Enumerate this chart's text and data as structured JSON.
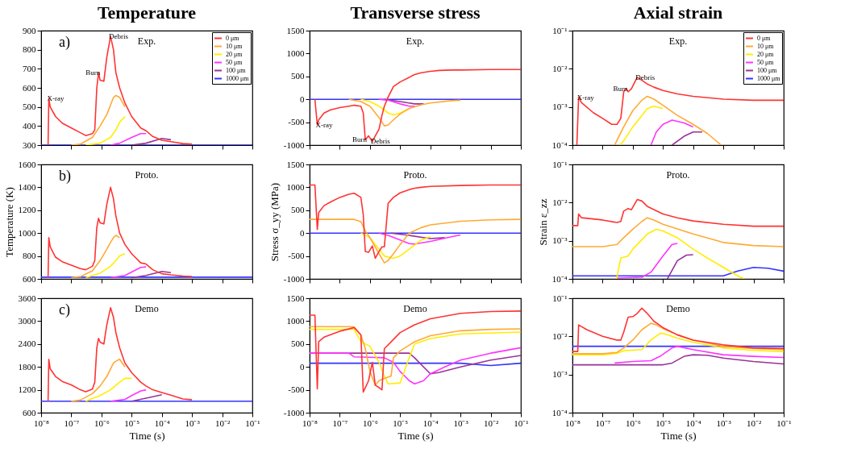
{
  "chart_data": [
    {
      "type": "line",
      "title": "Temperature",
      "log": "x",
      "tick_labels": "y",
      "legend": "top right",
      "xlim": [
        1e-08,
        0.1
      ],
      "xticks": [
        {
          "value": 1e-08,
          "label": null
        },
        {
          "value": 1e-07,
          "label": null
        },
        {
          "value": 1e-06,
          "label": null
        },
        {
          "value": 1e-05,
          "label": null
        },
        {
          "value": 0.0001,
          "label": null
        },
        {
          "value": 0.001,
          "label": null
        },
        {
          "value": 0.01,
          "label": null
        },
        {
          "value": 0.1,
          "label": null
        }
      ],
      "ylim": [
        300,
        900
      ],
      "yticks": [
        300,
        400,
        500,
        600,
        700,
        800,
        900
      ],
      "annotations": [
        "Exp.",
        "a)",
        {
          "text": "X-ray",
          "x": 1.8e-08,
          "y": 545
        },
        {
          "text": "Burn",
          "x": 8e-07,
          "y": 680
        },
        {
          "text": "Debris",
          "x": 2e-06,
          "y": 870
        }
      ],
      "series": [
        {
          "name": "0 μm",
          "color": "#ff3333",
          "x": [
            1.7e-08,
            1.8e-08,
            2e-08,
            3e-08,
            5e-08,
            1e-07,
            2e-07,
            3e-07,
            5e-07,
            6e-07,
            7e-07,
            8e-07,
            9e-07,
            1.2e-06,
            1.5e-06,
            2e-06,
            2.5e-06,
            3e-06,
            4e-06,
            6e-06,
            1e-05,
            2e-05,
            3e-05,
            5e-05,
            0.0001,
            0.0002,
            0.0005,
            0.001
          ],
          "values": [
            300,
            545,
            500,
            450,
            415,
            390,
            365,
            350,
            360,
            380,
            600,
            680,
            640,
            635,
            760,
            870,
            800,
            680,
            600,
            520,
            450,
            390,
            375,
            345,
            325,
            318,
            308,
            305
          ]
        },
        {
          "name": "10 μm",
          "color": "#ffaa33",
          "x": [
            1e-07,
            2e-07,
            5e-07,
            9e-07,
            1.5e-06,
            2e-06,
            2.5e-06,
            3e-06,
            4e-06,
            6e-06
          ],
          "values": [
            300,
            305,
            340,
            400,
            460,
            510,
            550,
            560,
            550,
            500
          ]
        },
        {
          "name": "20 μm",
          "color": "#ffee00",
          "x": [
            3e-07,
            9e-07,
            2e-06,
            3e-06,
            4e-06,
            6e-06
          ],
          "values": [
            300,
            310,
            340,
            380,
            420,
            450
          ]
        },
        {
          "name": "50 μm",
          "color": "#ff33ff",
          "x": [
            2e-06,
            4e-06,
            1e-05,
            2e-05,
            3e-05
          ],
          "values": [
            300,
            310,
            340,
            360,
            360
          ]
        },
        {
          "name": "100 μm",
          "color": "#993399",
          "x": [
            1e-05,
            3e-05,
            0.0001,
            0.0002
          ],
          "values": [
            300,
            310,
            335,
            328
          ]
        },
        {
          "name": "1000 μm",
          "color": "#3333ff",
          "x": [
            1e-08,
            0.1
          ],
          "values": [
            300,
            300
          ]
        }
      ]
    },
    {
      "type": "line",
      "title": "Transverse stress",
      "log": "x",
      "tick_labels": "y",
      "xlim": [
        1e-08,
        0.1
      ],
      "xticks": [
        {
          "value": 1e-08,
          "label": null
        },
        {
          "value": 1e-07,
          "label": null
        },
        {
          "value": 1e-06,
          "label": null
        },
        {
          "value": 1e-05,
          "label": null
        },
        {
          "value": 0.0001,
          "label": null
        },
        {
          "value": 0.001,
          "label": null
        },
        {
          "value": 0.01,
          "label": null
        },
        {
          "value": 0.1,
          "label": null
        }
      ],
      "ylim": [
        -1000,
        1500
      ],
      "yticks": [
        -1000,
        -500,
        0,
        500,
        1000,
        1500
      ],
      "annotations": [
        "Exp.",
        {
          "text": "X-ray",
          "x": 1.8e-08,
          "y": -560
        },
        {
          "text": "Burn",
          "x": 7e-07,
          "y": -880
        },
        {
          "text": "Debris",
          "x": 1.2e-06,
          "y": -920
        }
      ],
      "series": [
        {
          "color": "#ff3333",
          "x": [
            1.5e-08,
            1.8e-08,
            2e-08,
            3e-08,
            5e-08,
            1e-07,
            2e-07,
            3e-07,
            5e-07,
            6e-07,
            7e-07,
            9e-07,
            1.2e-06,
            1.5e-06,
            2e-06,
            2.5e-06,
            3e-06,
            4e-06,
            6e-06,
            1e-05,
            2e-05,
            3e-05,
            5e-05,
            0.0001,
            0.0002,
            0.0005,
            0.001,
            0.01,
            0.1
          ],
          "values": [
            0,
            -560,
            -450,
            -300,
            -230,
            -180,
            -150,
            -130,
            -150,
            -300,
            -880,
            -800,
            -920,
            -800,
            -650,
            -350,
            -150,
            50,
            280,
            380,
            480,
            540,
            580,
            610,
            630,
            640,
            640,
            650,
            650
          ]
        },
        {
          "color": "#ffaa33",
          "x": [
            2e-07,
            5e-07,
            1e-06,
            2e-06,
            3e-06,
            4e-06,
            6e-06,
            1e-05,
            2e-05,
            5e-05,
            0.0001,
            0.0005,
            0.001
          ],
          "values": [
            0,
            -50,
            -150,
            -400,
            -580,
            -560,
            -450,
            -320,
            -200,
            -120,
            -80,
            -30,
            -20
          ]
        },
        {
          "color": "#ffee00",
          "x": [
            5e-07,
            1e-06,
            2e-06,
            4e-06,
            6e-06,
            1e-05,
            2e-05
          ],
          "values": [
            0,
            -50,
            -150,
            -300,
            -340,
            -300,
            -200
          ]
        },
        {
          "color": "#ff33ff",
          "x": [
            2e-06,
            4e-06,
            1e-05,
            2e-05,
            3e-05
          ],
          "values": [
            0,
            -20,
            -100,
            -150,
            -150
          ]
        },
        {
          "color": "#993399",
          "x": [
            3e-06,
            1e-05,
            3e-05,
            6e-05
          ],
          "values": [
            0,
            -50,
            -100,
            -100
          ]
        },
        {
          "color": "#3333ff",
          "x": [
            1e-08,
            0.1
          ],
          "values": [
            0,
            0
          ]
        }
      ]
    },
    {
      "type": "line",
      "title": "Axial strain",
      "log": "xy",
      "tick_labels": "y",
      "legend": "top right",
      "xlim": [
        1e-08,
        0.1
      ],
      "xticks": [
        {
          "value": 1e-08,
          "label": null
        },
        {
          "value": 1e-07,
          "label": null
        },
        {
          "value": 1e-06,
          "label": null
        },
        {
          "value": 1e-05,
          "label": null
        },
        {
          "value": 0.0001,
          "label": null
        },
        {
          "value": 0.001,
          "label": null
        },
        {
          "value": 0.01,
          "label": null
        },
        {
          "value": 0.1,
          "label": null
        }
      ],
      "ylim": [
        0.0001,
        0.1
      ],
      "yticks": [
        {
          "value": 0.0001,
          "label": "10⁻⁴"
        },
        {
          "value": 0.001,
          "label": "10⁻³"
        },
        {
          "value": 0.01,
          "label": "10⁻²"
        },
        {
          "value": 0.1,
          "label": "10⁻¹"
        }
      ],
      "annotations": [
        "Exp.",
        {
          "text": "X-ray",
          "x": 1.6e-08,
          "y": 0.0018
        },
        {
          "text": "Burn",
          "x": 6e-07,
          "y": 0.003
        },
        {
          "text": "Debris",
          "x": 1.4e-06,
          "y": 0.006
        }
      ],
      "series": [
        {
          "name": "0 μm",
          "color": "#ff3333",
          "x": [
            1.4e-08,
            1.6e-08,
            2e-08,
            5e-08,
            1e-07,
            2e-07,
            3e-07,
            4e-07,
            5e-07,
            6e-07,
            7e-07,
            9e-07,
            1.4e-06,
            2e-06,
            3e-06,
            5e-06,
            1e-05,
            3e-05,
            0.0001,
            0.001,
            0.01,
            0.1
          ],
          "values": [
            0.0001,
            0.0018,
            0.0013,
            0.0007,
            0.0005,
            0.00035,
            0.00035,
            0.0005,
            0.0025,
            0.003,
            0.0025,
            0.003,
            0.006,
            0.005,
            0.004,
            0.0033,
            0.0027,
            0.0022,
            0.0019,
            0.0016,
            0.0015,
            0.0015
          ]
        },
        {
          "name": "10 μm",
          "color": "#ffaa33",
          "x": [
            2.5e-07,
            5e-07,
            1e-06,
            2e-06,
            3e-06,
            5e-06,
            1e-05,
            3e-05,
            0.0001,
            0.0003,
            0.00085
          ],
          "values": [
            0.0001,
            0.0003,
            0.0008,
            0.0015,
            0.0019,
            0.0016,
            0.0011,
            0.0006,
            0.00035,
            0.0002,
            0.0001
          ]
        },
        {
          "name": "20 μm",
          "color": "#ffee00",
          "x": [
            3.7e-07,
            5e-07,
            1e-06,
            2e-06,
            3e-06,
            5e-06,
            1e-05
          ],
          "values": [
            0.0001,
            0.00013,
            0.0003,
            0.0006,
            0.0009,
            0.00105,
            0.0009
          ]
        },
        {
          "name": "50 μm",
          "color": "#ff33ff",
          "x": [
            4e-06,
            6e-06,
            1e-05,
            2e-05,
            5e-05,
            0.0001
          ],
          "values": [
            0.0001,
            0.00022,
            0.00035,
            0.00045,
            0.00038,
            0.0003
          ]
        },
        {
          "name": "100 μm",
          "color": "#993399",
          "x": [
            2e-05,
            5e-05,
            0.0001,
            0.0002
          ],
          "values": [
            0.0001,
            0.00017,
            0.00022,
            0.00022
          ]
        },
        {
          "name": "1000 μm",
          "color": "#3333ff"
        }
      ]
    },
    {
      "type": "line",
      "ylabel": "Temperature (K)",
      "log": "x",
      "tick_labels": "y",
      "xlim": [
        1e-08,
        0.1
      ],
      "xticks": [
        {
          "value": 1e-08,
          "label": null
        },
        {
          "value": 1e-07,
          "label": null
        },
        {
          "value": 1e-06,
          "label": null
        },
        {
          "value": 1e-05,
          "label": null
        },
        {
          "value": 0.0001,
          "label": null
        },
        {
          "value": 0.001,
          "label": null
        },
        {
          "value": 0.01,
          "label": null
        },
        {
          "value": 0.1,
          "label": null
        }
      ],
      "ylim": [
        600,
        1600
      ],
      "yticks": [
        600,
        800,
        1000,
        1200,
        1400,
        1600
      ],
      "annotations": [
        "Proto.",
        "b)"
      ],
      "series": [
        {
          "color": "#ff3333",
          "x": [
            1.7e-08,
            1.8e-08,
            2e-08,
            3e-08,
            5e-08,
            1e-07,
            2e-07,
            3e-07,
            5e-07,
            6e-07,
            7e-07,
            8e-07,
            9e-07,
            1.2e-06,
            1.5e-06,
            2e-06,
            2.5e-06,
            3e-06,
            4e-06,
            6e-06,
            1e-05,
            2e-05,
            3e-05,
            5e-05,
            0.0001,
            0.0002,
            0.0005,
            0.001
          ],
          "values": [
            610,
            960,
            880,
            790,
            750,
            720,
            690,
            680,
            710,
            760,
            1050,
            1130,
            1090,
            1080,
            1250,
            1400,
            1300,
            1150,
            1000,
            900,
            820,
            740,
            730,
            680,
            645,
            635,
            625,
            620
          ]
        },
        {
          "color": "#ffaa33",
          "x": [
            1e-07,
            2e-07,
            5e-07,
            9e-07,
            1.5e-06,
            2e-06,
            2.5e-06,
            3e-06,
            4e-06
          ],
          "values": [
            610,
            620,
            670,
            760,
            860,
            920,
            960,
            980,
            960
          ]
        },
        {
          "color": "#ffee00",
          "x": [
            3e-07,
            9e-07,
            2e-06,
            3e-06,
            4e-06,
            6e-06
          ],
          "values": [
            610,
            650,
            710,
            760,
            800,
            820
          ]
        },
        {
          "color": "#ff33ff",
          "x": [
            2e-06,
            6e-06,
            1e-05,
            2e-05,
            3e-05
          ],
          "values": [
            610,
            630,
            660,
            700,
            705
          ]
        },
        {
          "color": "#993399",
          "x": [
            1e-05,
            3e-05,
            0.0001,
            0.0002
          ],
          "values": [
            610,
            630,
            665,
            655
          ]
        },
        {
          "color": "#3333ff",
          "x": [
            1e-08,
            0.1
          ],
          "values": [
            615,
            615
          ]
        }
      ]
    },
    {
      "type": "line",
      "ylabel": "Stress σ_yy (MPa)",
      "log": "x",
      "tick_labels": "y",
      "xlim": [
        1e-08,
        0.1
      ],
      "xticks": [
        {
          "value": 1e-08,
          "label": null
        },
        {
          "value": 1e-07,
          "label": null
        },
        {
          "value": 1e-06,
          "label": null
        },
        {
          "value": 1e-05,
          "label": null
        },
        {
          "value": 0.0001,
          "label": null
        },
        {
          "value": 0.001,
          "label": null
        },
        {
          "value": 0.01,
          "label": null
        },
        {
          "value": 0.1,
          "label": null
        }
      ],
      "ylim": [
        -1000,
        1500
      ],
      "yticks": [
        -1000,
        -500,
        0,
        500,
        1000,
        1500
      ],
      "annotations": [
        "Proto."
      ],
      "series": [
        {
          "color": "#ff3333",
          "x": [
            1e-08,
            1.5e-08,
            1.8e-08,
            2e-08,
            3e-08,
            5e-08,
            1e-07,
            2e-07,
            3e-07,
            5e-07,
            6e-07,
            7e-07,
            9e-07,
            1.2e-06,
            1.5e-06,
            2e-06,
            2.5e-06,
            3e-06,
            4e-06,
            6e-06,
            1e-05,
            2e-05,
            3e-05,
            5e-05,
            0.0001,
            0.001,
            0.01,
            0.1
          ],
          "values": [
            1050,
            1050,
            80,
            450,
            600,
            680,
            780,
            850,
            870,
            780,
            400,
            -400,
            -420,
            -280,
            -550,
            -400,
            -300,
            -300,
            650,
            780,
            880,
            950,
            980,
            1000,
            1020,
            1040,
            1050,
            1050
          ]
        },
        {
          "color": "#ffaa33",
          "x": [
            1e-08,
            3e-07,
            5e-07,
            7e-07,
            1e-06,
            2e-06,
            3e-06,
            4e-06,
            6e-06,
            1e-05,
            2e-05,
            5e-05,
            0.0001,
            0.001,
            0.01,
            0.1
          ],
          "values": [
            300,
            300,
            250,
            50,
            -100,
            -450,
            -650,
            -600,
            -450,
            -250,
            0,
            120,
            180,
            260,
            290,
            300
          ]
        },
        {
          "color": "#ffee00",
          "x": [
            5e-07,
            1e-06,
            2e-06,
            3e-06,
            6e-06,
            1e-05,
            2e-05,
            5e-05,
            0.0001
          ],
          "values": [
            0,
            -100,
            -350,
            -500,
            -550,
            -500,
            -350,
            -150,
            -80
          ]
        },
        {
          "color": "#ff33ff",
          "x": [
            2e-06,
            4e-06,
            1e-05,
            2e-05,
            3e-05,
            0.0001,
            0.0005,
            0.001
          ],
          "values": [
            0,
            -50,
            -150,
            -230,
            -240,
            -180,
            -80,
            -40
          ]
        },
        {
          "color": "#993399",
          "x": [
            5e-06,
            2e-05,
            0.0001,
            0.0003
          ],
          "values": [
            0,
            -50,
            -120,
            -100
          ]
        },
        {
          "color": "#3333ff",
          "x": [
            1e-08,
            0.1
          ],
          "values": [
            0,
            0
          ]
        }
      ]
    },
    {
      "type": "line",
      "ylabel": "Strain ε_zz",
      "log": "xy",
      "tick_labels": "y",
      "xlim": [
        1e-08,
        0.1
      ],
      "xticks": [
        {
          "value": 1e-08,
          "label": null
        },
        {
          "value": 1e-07,
          "label": null
        },
        {
          "value": 1e-06,
          "label": null
        },
        {
          "value": 1e-05,
          "label": null
        },
        {
          "value": 0.0001,
          "label": null
        },
        {
          "value": 0.001,
          "label": null
        },
        {
          "value": 0.01,
          "label": null
        },
        {
          "value": 0.1,
          "label": null
        }
      ],
      "ylim": [
        0.0001,
        0.1
      ],
      "yticks": [
        {
          "value": 0.0001,
          "label": "10⁻⁴"
        },
        {
          "value": 0.001,
          "label": "10⁻³"
        },
        {
          "value": 0.01,
          "label": "10⁻²"
        },
        {
          "value": 0.1,
          "label": "10⁻¹"
        }
      ],
      "annotations": [
        "Proto."
      ],
      "series": [
        {
          "color": "#ff3333",
          "x": [
            1e-08,
            1.5e-08,
            1.6e-08,
            2e-08,
            1e-07,
            3e-07,
            4e-07,
            5e-07,
            7e-07,
            9e-07,
            1.4e-06,
            2e-06,
            3e-06,
            1e-05,
            3e-05,
            0.0001,
            0.001,
            0.01,
            0.1
          ],
          "values": [
            0.0025,
            0.0025,
            0.005,
            0.004,
            0.0035,
            0.003,
            0.0032,
            0.006,
            0.007,
            0.0065,
            0.012,
            0.011,
            0.008,
            0.005,
            0.004,
            0.0033,
            0.0027,
            0.0024,
            0.0024
          ]
        },
        {
          "color": "#ffaa33",
          "x": [
            1e-08,
            1e-07,
            3e-07,
            5e-07,
            1e-06,
            2e-06,
            3e-06,
            5e-06,
            1e-05,
            0.0001,
            0.001,
            0.01,
            0.1
          ],
          "values": [
            0.0007,
            0.0007,
            0.0008,
            0.0012,
            0.002,
            0.0032,
            0.004,
            0.0035,
            0.0027,
            0.0015,
            0.0009,
            0.00075,
            0.0007
          ]
        },
        {
          "color": "#ffee00",
          "x": [
            2.9e-07,
            4e-07,
            7e-07,
            1e-06,
            3e-06,
            6e-06,
            1e-05,
            3e-05,
            0.0001,
            0.0003,
            0.001,
            0.003,
            0.005
          ],
          "values": [
            0.0001,
            0.00035,
            0.0004,
            0.0006,
            0.0015,
            0.002,
            0.0018,
            0.0012,
            0.0006,
            0.00035,
            0.0002,
            0.00012,
            0.0001
          ]
        },
        {
          "color": "#ff33ff",
          "x": [
            3e-07,
            2e-06,
            4e-06,
            1e-05,
            2e-05,
            3e-05
          ],
          "values": [
            0.000105,
            0.00011,
            0.00015,
            0.0004,
            0.0008,
            0.00085
          ]
        },
        {
          "color": "#993399",
          "x": [
            1.4e-05,
            3e-05,
            6e-05,
            0.0001
          ],
          "values": [
            0.0001,
            0.0003,
            0.00042,
            0.00043
          ]
        },
        {
          "color": "#3333ff",
          "x": [
            1e-08,
            0.001,
            0.003,
            0.01,
            0.03,
            0.1
          ],
          "values": [
            0.00012,
            0.00012,
            0.00016,
            0.0002,
            0.00019,
            0.00016
          ]
        }
      ]
    },
    {
      "type": "line",
      "xlabel": "Time (s)",
      "log": "x",
      "xlim": [
        1e-08,
        0.1
      ],
      "xticks": [
        {
          "value": 1e-08,
          "label": "10⁻⁸"
        },
        {
          "value": 1e-07,
          "label": "10⁻⁷"
        },
        {
          "value": 1e-06,
          "label": "10⁻⁶"
        },
        {
          "value": 1e-05,
          "label": "10⁻⁵"
        },
        {
          "value": 0.0001,
          "label": "10⁻⁴"
        },
        {
          "value": 0.001,
          "label": "10⁻³"
        },
        {
          "value": 0.01,
          "label": "10⁻²"
        },
        {
          "value": 0.1,
          "label": "10⁻¹"
        }
      ],
      "ylim": [
        600,
        3600
      ],
      "yticks": [
        600,
        1200,
        1800,
        2400,
        3000,
        3600
      ],
      "annotations": [
        "Demo",
        "c)"
      ],
      "series": [
        {
          "color": "#ff3333",
          "x": [
            1.7e-08,
            1.8e-08,
            2e-08,
            3e-08,
            5e-08,
            1e-07,
            2e-07,
            3e-07,
            5e-07,
            6e-07,
            7e-07,
            8e-07,
            9e-07,
            1.2e-06,
            1.5e-06,
            2e-06,
            2.5e-06,
            3e-06,
            4e-06,
            6e-06,
            1e-05,
            2e-05,
            3e-05,
            5e-05,
            0.0001,
            0.0002,
            0.0005,
            0.001
          ],
          "values": [
            900,
            2000,
            1750,
            1550,
            1420,
            1330,
            1200,
            1150,
            1220,
            1400,
            2300,
            2550,
            2450,
            2400,
            2900,
            3350,
            3100,
            2700,
            2300,
            1900,
            1650,
            1400,
            1300,
            1200,
            1130,
            1060,
            960,
            940
          ]
        },
        {
          "color": "#ffaa33",
          "x": [
            1e-07,
            2e-07,
            5e-07,
            9e-07,
            1.5e-06,
            2e-06,
            2.5e-06,
            3e-06,
            4e-06,
            6e-06
          ],
          "values": [
            900,
            930,
            1100,
            1300,
            1550,
            1750,
            1900,
            1950,
            2000,
            1800
          ]
        },
        {
          "color": "#ffee00",
          "x": [
            3e-07,
            9e-07,
            2e-06,
            3e-06,
            4e-06,
            6e-06,
            1e-05
          ],
          "values": [
            900,
            1050,
            1200,
            1320,
            1400,
            1500,
            1500
          ]
        },
        {
          "color": "#ff33ff",
          "x": [
            2e-06,
            6e-06,
            1e-05,
            2e-05,
            3e-05
          ],
          "values": [
            900,
            950,
            1050,
            1170,
            1200
          ]
        },
        {
          "color": "#993399",
          "x": [
            1e-05,
            3e-05,
            0.0001
          ],
          "values": [
            900,
            980,
            1070
          ]
        },
        {
          "color": "#3333ff",
          "x": [
            1e-08,
            0.1
          ],
          "values": [
            900,
            900
          ]
        }
      ]
    },
    {
      "type": "line",
      "xlabel": "Time (s)",
      "log": "x",
      "xlim": [
        1e-08,
        0.1
      ],
      "xticks": [
        {
          "value": 1e-08,
          "label": "10⁻⁸"
        },
        {
          "value": 1e-07,
          "label": "10⁻⁷"
        },
        {
          "value": 1e-06,
          "label": "10⁻⁶"
        },
        {
          "value": 1e-05,
          "label": "10⁻⁵"
        },
        {
          "value": 0.0001,
          "label": "10⁻⁴"
        },
        {
          "value": 0.001,
          "label": "10⁻³"
        },
        {
          "value": 0.01,
          "label": "10⁻²"
        },
        {
          "value": 0.1,
          "label": "10⁻¹"
        }
      ],
      "ylim": [
        -1000,
        1500
      ],
      "yticks": [
        -1000,
        -500,
        0,
        500,
        1000,
        1500
      ],
      "annotations": [
        "Demo"
      ],
      "series": [
        {
          "color": "#ff3333",
          "x": [
            1e-08,
            1.5e-08,
            1.8e-08,
            2e-08,
            3e-08,
            1e-07,
            3e-07,
            5e-07,
            6e-07,
            9e-07,
            1.2e-06,
            1.5e-06,
            2e-06,
            2.5e-06,
            3e-06,
            6e-06,
            1e-05,
            3e-05,
            0.0001,
            0.001,
            0.01,
            0.1
          ],
          "values": [
            1130,
            1130,
            -480,
            550,
            650,
            780,
            860,
            700,
            -550,
            -300,
            100,
            -400,
            -450,
            -500,
            400,
            600,
            750,
            920,
            1050,
            1170,
            1210,
            1220
          ]
        },
        {
          "color": "#ffaa33",
          "x": [
            1e-08,
            2e-07,
            3e-07,
            5e-07,
            7e-07,
            1e-06,
            1.5e-06,
            2e-06,
            3e-06,
            5e-06,
            6e-06,
            1e-05,
            3e-05,
            0.0001,
            0.001,
            0.01,
            0.1
          ],
          "values": [
            880,
            880,
            870,
            700,
            400,
            -100,
            -400,
            -300,
            -250,
            -200,
            200,
            350,
            550,
            680,
            790,
            820,
            830
          ]
        },
        {
          "color": "#ffee00",
          "x": [
            1e-08,
            3e-07,
            5e-07,
            1e-06,
            2e-06,
            3e-06,
            4e-06,
            1e-05,
            2e-05,
            3e-05,
            0.0001,
            0.001,
            0.1
          ],
          "values": [
            820,
            820,
            550,
            450,
            100,
            -200,
            -370,
            -350,
            200,
            500,
            620,
            720,
            760
          ]
        },
        {
          "color": "#ff33ff",
          "x": [
            1e-08,
            2e-07,
            3e-07,
            1e-06,
            3e-06,
            6e-06,
            1e-05,
            2e-05,
            3e-05,
            6e-05,
            0.0001,
            0.0003,
            0.001,
            0.01,
            0.1
          ],
          "values": [
            300,
            300,
            220,
            210,
            200,
            100,
            -100,
            -300,
            -370,
            -300,
            -150,
            0,
            150,
            300,
            420
          ]
        },
        {
          "color": "#993399",
          "x": [
            1e-08,
            2e-05,
            3e-05,
            0.0001,
            0.0002,
            0.001,
            0.01,
            0.1
          ],
          "values": [
            300,
            300,
            200,
            -150,
            -120,
            0,
            150,
            250
          ]
        },
        {
          "color": "#3333ff",
          "x": [
            1e-08,
            0.001,
            0.01,
            0.1
          ],
          "values": [
            80,
            80,
            30,
            80
          ]
        }
      ]
    },
    {
      "type": "line",
      "xlabel": "Time (s)",
      "log": "xy",
      "xlim": [
        1e-08,
        0.1
      ],
      "xticks": [
        {
          "value": 1e-08,
          "label": "10⁻⁸"
        },
        {
          "value": 1e-07,
          "label": "10⁻⁷"
        },
        {
          "value": 1e-06,
          "label": "10⁻⁶"
        },
        {
          "value": 1e-05,
          "label": "10⁻⁵"
        },
        {
          "value": 0.0001,
          "label": "10⁻⁴"
        },
        {
          "value": 0.001,
          "label": "10⁻³"
        },
        {
          "value": 0.01,
          "label": "10⁻²"
        },
        {
          "value": 0.1,
          "label": "10⁻¹"
        }
      ],
      "ylim": [
        0.0001,
        0.1
      ],
      "yticks": [
        {
          "value": 0.0001,
          "label": "10⁻⁴"
        },
        {
          "value": 0.001,
          "label": "10⁻³"
        },
        {
          "value": 0.01,
          "label": "10⁻²"
        },
        {
          "value": 0.1,
          "label": "10⁻¹"
        }
      ],
      "annotations": [
        "Demo"
      ],
      "series": [
        {
          "color": "#ff3333",
          "x": [
            1e-08,
            1.5e-08,
            1.6e-08,
            3e-08,
            1e-07,
            3e-07,
            4e-07,
            5e-07,
            7e-07,
            1e-06,
            1.4e-06,
            2e-06,
            3e-06,
            5e-06,
            1e-05,
            3e-05,
            0.0001,
            0.001,
            0.01,
            0.1
          ],
          "values": [
            0.004,
            0.004,
            0.02,
            0.015,
            0.01,
            0.008,
            0.008,
            0.013,
            0.032,
            0.033,
            0.04,
            0.055,
            0.04,
            0.025,
            0.017,
            0.011,
            0.008,
            0.006,
            0.005,
            0.0048
          ]
        },
        {
          "color": "#ffaa33",
          "x": [
            1e-08,
            1e-07,
            3e-07,
            5e-07,
            1e-06,
            2e-06,
            4e-06,
            6e-06,
            1e-05,
            3e-05,
            0.0001,
            0.001,
            0.01,
            0.1
          ],
          "values": [
            0.0035,
            0.0035,
            0.0038,
            0.005,
            0.008,
            0.015,
            0.022,
            0.02,
            0.016,
            0.011,
            0.008,
            0.0055,
            0.0048,
            0.0045
          ]
        },
        {
          "color": "#ffee00",
          "x": [
            1e-08,
            1e-07,
            3e-07,
            5e-07,
            2e-06,
            4e-06,
            8e-06,
            1e-05,
            3e-05,
            0.0001,
            0.001,
            0.01,
            0.1
          ],
          "values": [
            0.0033,
            0.0033,
            0.0036,
            0.0042,
            0.0045,
            0.008,
            0.012,
            0.012,
            0.009,
            0.007,
            0.005,
            0.0043,
            0.004
          ]
        },
        {
          "color": "#ff33ff",
          "x": [
            2.5e-07,
            1e-06,
            4e-06,
            8e-06,
            2e-05,
            3e-05,
            0.0001,
            0.001,
            0.01,
            0.1
          ],
          "values": [
            0.002,
            0.0022,
            0.0023,
            0.003,
            0.005,
            0.0055,
            0.0045,
            0.0033,
            0.003,
            0.0028
          ]
        },
        {
          "color": "#993399",
          "x": [
            1e-08,
            1e-05,
            2e-05,
            5e-05,
            0.0001,
            0.0003,
            0.001,
            0.01,
            0.1
          ],
          "values": [
            0.0018,
            0.0018,
            0.002,
            0.003,
            0.0033,
            0.0032,
            0.0027,
            0.0022,
            0.0019
          ]
        },
        {
          "color": "#3333ff",
          "x": [
            1e-08,
            0.1
          ],
          "values": [
            0.0055,
            0.0055
          ]
        }
      ]
    }
  ]
}
